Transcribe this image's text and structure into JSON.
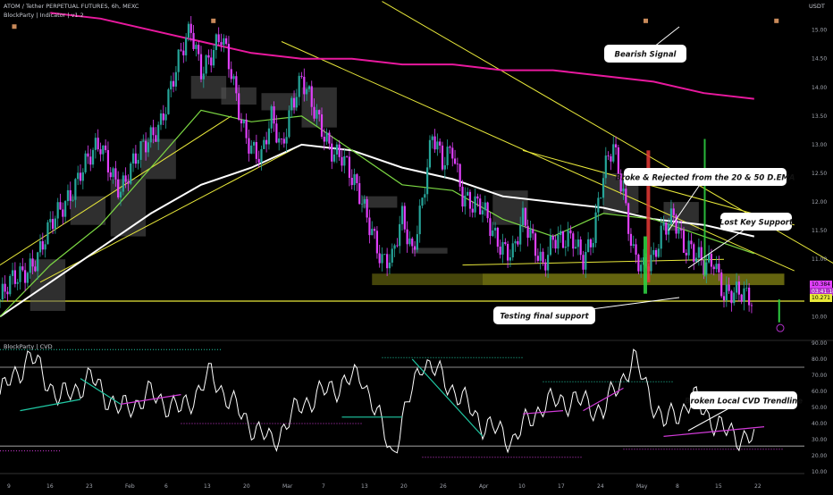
{
  "header": {
    "symbol_line": "ATOM / Tether PERPETUAL FUTURES, 6h, MEXC",
    "indicator_line": "BlockParty | Indicator | v1.2",
    "currency": "USDT",
    "lower_indicator": "BlockParty | CVD"
  },
  "colors": {
    "background": "#000000",
    "up_candle": "#26a69a",
    "down_candle": "#e040fb",
    "ema_200": "#e8199e",
    "ema_20": "#7cd843",
    "ema_50": "#ffffff",
    "trendline": "#e8e83a",
    "support_zone": "#7d7d13",
    "cvd_line": "#ffffff",
    "cvd_up_trend": "#20c9a4",
    "cvd_down_trend": "#d13ad8"
  },
  "annotations": [
    "Bearish Signal",
    "Broke & Rejected from the 20 & 50 D.EMA",
    "Lost Key Support",
    "Testing final support",
    "Broken Local CVD Trendline"
  ],
  "price_tags": {
    "current": "10.384",
    "timer": "03:41:18",
    "support": "10.271"
  },
  "chart_data": [
    {
      "type": "candlestick",
      "title": "ATOM / Tether PERPETUAL FUTURES, 6h, MEXC",
      "ylabel": "USDT",
      "ylim": [
        9.6,
        15.4
      ],
      "x_ticks": [
        "9",
        "16",
        "23",
        "Feb",
        "6",
        "13",
        "20",
        "Mar",
        "7",
        "13",
        "20",
        "26",
        "Apr",
        "10",
        "17",
        "24",
        "May",
        "8",
        "15",
        "22"
      ],
      "y_ticks": [
        10.0,
        10.5,
        11.0,
        11.5,
        12.0,
        12.5,
        13.0,
        13.5,
        14.0,
        14.5,
        15.0
      ],
      "price_path": [
        [
          0,
          10.3
        ],
        [
          2,
          10.7
        ],
        [
          4,
          11.2
        ],
        [
          6,
          11.8
        ],
        [
          8,
          12.6
        ],
        [
          10,
          12.9
        ],
        [
          12,
          12.3
        ],
        [
          14,
          12.8
        ],
        [
          16,
          13.5
        ],
        [
          18,
          14.5
        ],
        [
          19,
          15.0
        ],
        [
          20,
          14.4
        ],
        [
          22,
          14.8
        ],
        [
          23,
          14.2
        ],
        [
          24,
          13.5
        ],
        [
          25,
          13.0
        ],
        [
          26,
          12.7
        ],
        [
          27,
          13.4
        ],
        [
          28,
          13.0
        ],
        [
          29,
          13.8
        ],
        [
          30,
          14.1
        ],
        [
          31,
          13.6
        ],
        [
          32,
          13.3
        ],
        [
          33,
          13.0
        ],
        [
          34,
          12.8
        ],
        [
          35,
          12.3
        ],
        [
          36,
          12.0
        ],
        [
          37,
          11.6
        ],
        [
          38,
          11.0
        ],
        [
          39,
          10.9
        ],
        [
          40,
          11.7
        ],
        [
          41,
          11.2
        ],
        [
          42,
          12.1
        ],
        [
          43,
          13.1
        ],
        [
          44,
          12.6
        ],
        [
          45,
          13.0
        ],
        [
          46,
          12.2
        ],
        [
          47,
          11.9
        ],
        [
          48,
          11.8
        ],
        [
          49,
          11.5
        ],
        [
          50,
          11.3
        ],
        [
          51,
          11.1
        ],
        [
          52,
          11.6
        ],
        [
          53,
          11.3
        ],
        [
          54,
          11.0
        ],
        [
          55,
          11.4
        ],
        [
          56,
          11.2
        ],
        [
          57,
          11.3
        ],
        [
          58,
          11.1
        ],
        [
          59,
          11.5
        ],
        [
          60,
          12.4
        ],
        [
          61,
          12.9
        ],
        [
          62,
          12.2
        ],
        [
          63,
          11.2
        ],
        [
          64,
          10.8
        ],
        [
          65,
          10.9
        ],
        [
          66,
          11.6
        ],
        [
          67,
          11.9
        ],
        [
          68,
          11.2
        ],
        [
          69,
          11.0
        ],
        [
          70,
          10.9
        ],
        [
          71,
          11.1
        ],
        [
          72,
          10.4
        ],
        [
          73,
          10.3
        ],
        [
          74,
          10.35
        ],
        [
          75,
          10.38
        ]
      ],
      "series": [
        {
          "name": "200 EMA",
          "x": [
            5,
            10,
            15,
            20,
            25,
            30,
            35,
            40,
            45,
            50,
            55,
            60,
            65,
            70,
            75
          ],
          "values": [
            15.3,
            15.2,
            15.0,
            14.8,
            14.6,
            14.5,
            14.5,
            14.4,
            14.4,
            14.3,
            14.3,
            14.2,
            14.1,
            13.9,
            13.8
          ]
        },
        {
          "name": "50 EMA",
          "x": [
            0,
            5,
            10,
            15,
            20,
            25,
            30,
            35,
            40,
            45,
            50,
            55,
            60,
            65,
            70,
            75
          ],
          "values": [
            10.0,
            10.6,
            11.2,
            11.8,
            12.3,
            12.6,
            13.0,
            12.9,
            12.6,
            12.4,
            12.1,
            12.0,
            11.9,
            11.7,
            11.6,
            11.4
          ]
        },
        {
          "name": "20 EMA",
          "x": [
            0,
            5,
            10,
            15,
            20,
            25,
            30,
            35,
            40,
            45,
            50,
            55,
            60,
            65,
            70,
            75
          ],
          "values": [
            10.0,
            10.9,
            11.6,
            12.6,
            13.6,
            13.4,
            13.5,
            12.9,
            12.3,
            12.2,
            11.7,
            11.4,
            11.8,
            11.7,
            11.4,
            11.1
          ]
        }
      ],
      "support_zone": [
        10.55,
        10.75
      ],
      "support_line": 10.27
    },
    {
      "type": "line",
      "title": "BlockParty | CVD",
      "ylim": [
        10,
        90
      ],
      "y_ticks": [
        10,
        20,
        30,
        40,
        50,
        60,
        70,
        80,
        90
      ],
      "hlines": [
        75,
        26
      ],
      "x": [
        0,
        3,
        6,
        9,
        12,
        15,
        18,
        21,
        24,
        27,
        30,
        33,
        36,
        39,
        42,
        45,
        48,
        51,
        54,
        57,
        60,
        63,
        66,
        69,
        72,
        75
      ],
      "values": [
        58,
        82,
        55,
        68,
        48,
        58,
        48,
        70,
        45,
        28,
        52,
        62,
        70,
        21,
        80,
        62,
        40,
        30,
        52,
        55,
        48,
        80,
        40,
        55,
        35,
        30
      ]
    }
  ]
}
